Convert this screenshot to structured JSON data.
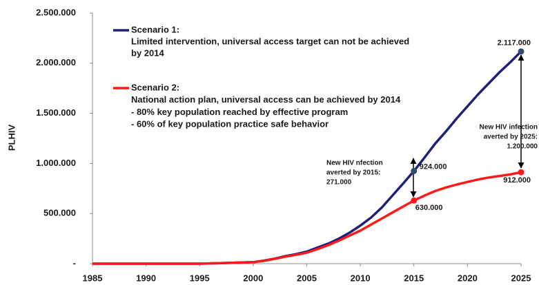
{
  "chart_data": {
    "type": "line",
    "y_label": "PLHIV",
    "x": [
      1985,
      1990,
      1995,
      1997,
      2000,
      2001,
      2002,
      2003,
      2004,
      2005,
      2006,
      2007,
      2008,
      2009,
      2010,
      2011,
      2012,
      2013,
      2014,
      2015,
      2016,
      2017,
      2018,
      2019,
      2020,
      2021,
      2022,
      2023,
      2024,
      2025
    ],
    "series": [
      {
        "name": "Scenario 1:",
        "description": [
          "Limited intervention, universal access target can not be achieved",
          "by 2014"
        ],
        "color": "#1f1f7a",
        "values": [
          0,
          0,
          0,
          5000,
          15000,
          30000,
          50000,
          75000,
          95000,
          120000,
          160000,
          200000,
          250000,
          310000,
          380000,
          460000,
          560000,
          680000,
          800000,
          924000,
          1060000,
          1200000,
          1320000,
          1450000,
          1570000,
          1690000,
          1800000,
          1910000,
          2010000,
          2117000
        ],
        "value_labels": [
          null,
          null,
          null,
          null,
          null,
          null,
          null,
          null,
          null,
          null,
          null,
          null,
          null,
          null,
          null,
          null,
          null,
          null,
          null,
          "924.000",
          null,
          null,
          null,
          null,
          null,
          null,
          null,
          null,
          null,
          "2.117.000"
        ]
      },
      {
        "name": "Scenario 2:",
        "description": [
          "National action plan, universal access can be achieved by 2014",
          "- 80% key population reached by effective program",
          "- 60% of key population practice safe behavior"
        ],
        "color": "#ff1a1a",
        "values": [
          0,
          0,
          0,
          5000,
          15000,
          28000,
          48000,
          70000,
          88000,
          110000,
          145000,
          185000,
          230000,
          280000,
          330000,
          390000,
          450000,
          510000,
          570000,
          630000,
          680000,
          725000,
          760000,
          790000,
          815000,
          840000,
          860000,
          875000,
          890000,
          912000
        ],
        "value_labels": [
          null,
          null,
          null,
          null,
          null,
          null,
          null,
          null,
          null,
          null,
          null,
          null,
          null,
          null,
          null,
          null,
          null,
          null,
          null,
          "630.000",
          null,
          null,
          null,
          null,
          null,
          null,
          null,
          null,
          null,
          "912.000"
        ]
      }
    ],
    "annotations": [
      {
        "lines": [
          "New HIV nfection",
          "averted by 2015:",
          "271.000"
        ]
      },
      {
        "lines": [
          "New HIV infection",
          "averted by 2025:",
          "1.200.000"
        ]
      }
    ],
    "xlim": [
      1985,
      2025
    ],
    "xticks": [
      1985,
      1990,
      1995,
      2000,
      2005,
      2010,
      2015,
      2020,
      2025
    ],
    "ylim": [
      0,
      2500000
    ],
    "yticks": [
      {
        "value": 0,
        "label": "-"
      },
      {
        "value": 500000,
        "label": "500.000"
      },
      {
        "value": 1000000,
        "label": "1.000.000"
      },
      {
        "value": 1500000,
        "label": "1.500.000"
      },
      {
        "value": 2000000,
        "label": "2.000.000"
      },
      {
        "value": 2500000,
        "label": "2.500.000"
      }
    ],
    "grid": false
  }
}
